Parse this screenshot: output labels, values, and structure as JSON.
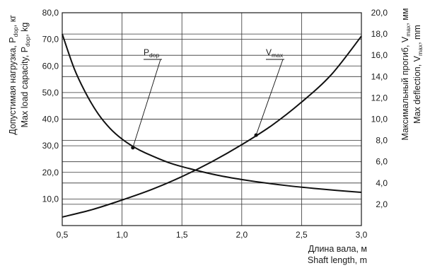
{
  "chart_data": {
    "type": "line",
    "x_axis": {
      "label_ru": "Длина вала, м",
      "label_en": "Shaft length, m",
      "ticks": [
        "0,5",
        "1,0",
        "1,5",
        "2,0",
        "2,5",
        "3,0"
      ],
      "range": [
        0.5,
        3.0
      ]
    },
    "y_left": {
      "label_ru": "Допустимая нагрузка, P",
      "label_ru_sub": "dop",
      "label_ru_unit": ", кг",
      "label_en": "Max load capacity, P",
      "label_en_sub": "dop",
      "label_en_unit": ", kg",
      "ticks": [
        "10,0",
        "20,0",
        "30,0",
        "40,0",
        "50,0",
        "60,0",
        "70,0",
        "80,0"
      ],
      "range": [
        0,
        80
      ]
    },
    "y_right": {
      "label_ru": "Максимальный прогиб, V",
      "label_ru_sub": "max",
      "label_ru_unit": ", мм",
      "label_en": "Max deflection, V",
      "label_en_sub": "max",
      "label_en_unit": ", mm",
      "ticks": [
        "2,0",
        "4,0",
        "6,0",
        "8,0",
        "10,0",
        "12,0",
        "14,0",
        "16,0",
        "18,0",
        "20,0"
      ],
      "range": [
        0,
        20
      ]
    },
    "grid": true,
    "series": [
      {
        "name": "P",
        "name_sub": "dop",
        "axis": "left",
        "x": [
          0.5,
          0.6,
          0.7,
          0.8,
          0.9,
          1.0,
          1.1,
          1.2,
          1.4,
          1.6,
          1.8,
          2.0,
          2.2,
          2.4,
          2.6,
          2.8,
          3.0
        ],
        "y": [
          72.0,
          59.0,
          49.5,
          42.0,
          36.5,
          32.5,
          29.5,
          27.2,
          23.5,
          21.0,
          18.9,
          17.3,
          16.0,
          14.9,
          14.0,
          13.2,
          12.5
        ]
      },
      {
        "name": "V",
        "name_sub": "max",
        "axis": "right",
        "x": [
          0.5,
          0.75,
          1.0,
          1.25,
          1.5,
          1.75,
          2.0,
          2.25,
          2.5,
          2.75,
          3.0
        ],
        "y": [
          0.8,
          1.5,
          2.4,
          3.4,
          4.6,
          6.0,
          7.6,
          9.4,
          11.6,
          14.2,
          17.8
        ]
      }
    ],
    "annotations": [
      {
        "series": 0,
        "label": "P",
        "sub": "dop",
        "at_x": 1.09,
        "value": 29.3
      },
      {
        "series": 1,
        "label": "V",
        "sub": "max",
        "at_x": 2.12,
        "value": 8.5
      }
    ]
  }
}
